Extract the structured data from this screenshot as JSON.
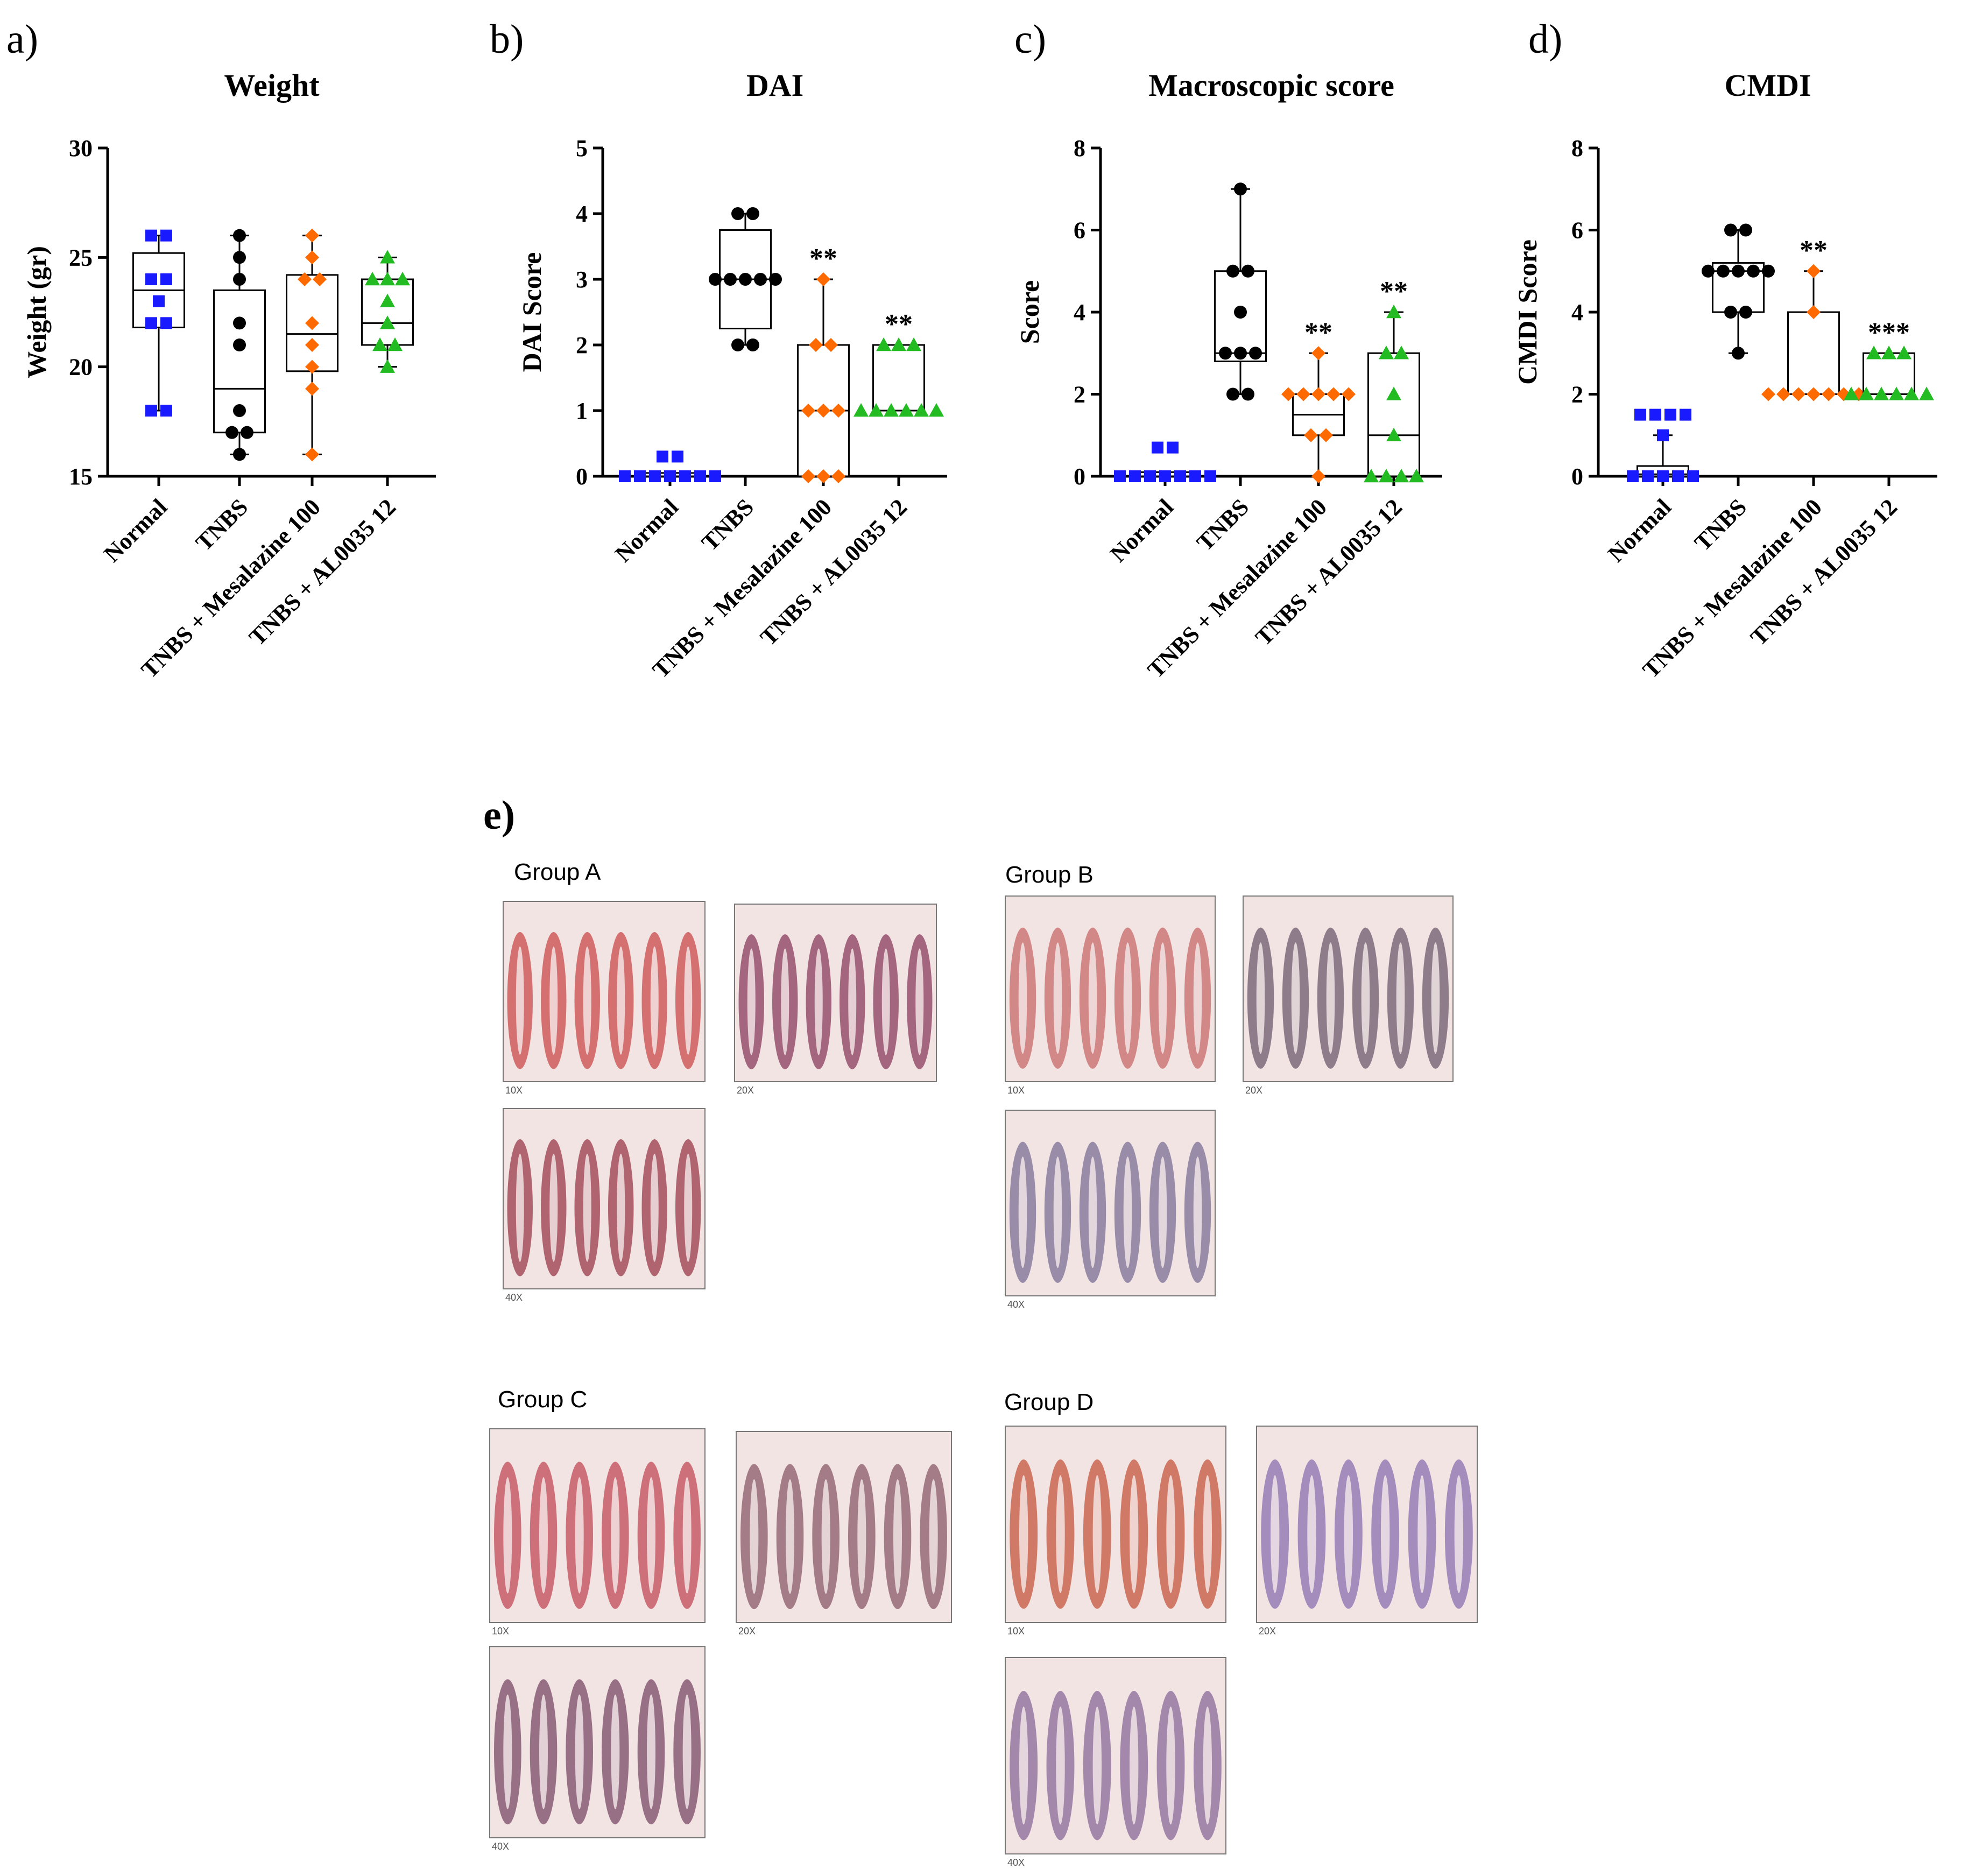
{
  "chart_data": [
    {
      "panel": "a)",
      "type": "box",
      "title": "Weight",
      "ylabel": "Weight (gr)",
      "ylim": [
        15,
        30
      ],
      "yticks": [
        15,
        20,
        25,
        30
      ],
      "categories": [
        "Normal",
        "TNBS",
        "TNBS + Mesalazine 100",
        "TNBS + AL0035 12"
      ],
      "colors": [
        "#1a1aff",
        "#000000",
        "#ff6a00",
        "#22bb22"
      ],
      "markers": [
        "square",
        "circle",
        "diamond",
        "triangle"
      ],
      "series": [
        {
          "name": "Normal",
          "points": [
            18,
            18,
            22,
            22,
            23,
            24,
            24,
            26,
            26
          ],
          "box": {
            "min": 18,
            "q1": 21.8,
            "median": 23.5,
            "q3": 25.2,
            "max": 26
          },
          "sig": ""
        },
        {
          "name": "TNBS",
          "points": [
            16,
            17,
            17,
            18,
            21,
            22,
            24,
            25,
            26
          ],
          "box": {
            "min": 16,
            "q1": 17,
            "median": 19,
            "q3": 23.5,
            "max": 26
          },
          "sig": ""
        },
        {
          "name": "TNBS + Mesalazine 100",
          "points": [
            16,
            19,
            20,
            21,
            22,
            24,
            24,
            25,
            26
          ],
          "box": {
            "min": 16,
            "q1": 19.8,
            "median": 21.5,
            "q3": 24.2,
            "max": 26
          },
          "sig": ""
        },
        {
          "name": "TNBS + AL0035 12",
          "points": [
            20,
            21,
            21,
            22,
            23,
            24,
            24,
            24,
            25
          ],
          "box": {
            "min": 20,
            "q1": 21,
            "median": 22,
            "q3": 24,
            "max": 25
          },
          "sig": ""
        }
      ]
    },
    {
      "panel": "b)",
      "type": "box",
      "title": "DAI",
      "ylabel": "DAI Score",
      "ylim": [
        0,
        5
      ],
      "yticks": [
        0,
        1,
        2,
        3,
        4,
        5
      ],
      "categories": [
        "Normal",
        "TNBS",
        "TNBS + Mesalazine 100",
        "TNBS + AL0035 12"
      ],
      "colors": [
        "#1a1aff",
        "#000000",
        "#ff6a00",
        "#22bb22"
      ],
      "markers": [
        "square",
        "circle",
        "diamond",
        "triangle"
      ],
      "series": [
        {
          "name": "Normal",
          "points": [
            0,
            0,
            0,
            0,
            0,
            0,
            0,
            0.3,
            0.3
          ],
          "box": {
            "min": 0,
            "q1": 0,
            "median": 0,
            "q3": 0.05,
            "max": 0.05
          },
          "sig": ""
        },
        {
          "name": "TNBS",
          "points": [
            2,
            2,
            3,
            3,
            3,
            3,
            3,
            4,
            4
          ],
          "box": {
            "min": 2,
            "q1": 2.25,
            "median": 3,
            "q3": 3.75,
            "max": 4
          },
          "sig": ""
        },
        {
          "name": "TNBS + Mesalazine 100",
          "points": [
            0,
            0,
            0,
            1,
            1,
            1,
            2,
            2,
            3
          ],
          "box": {
            "min": 0,
            "q1": 0,
            "median": 1,
            "q3": 2,
            "max": 3
          },
          "sig": "**"
        },
        {
          "name": "TNBS + AL0035 12",
          "points": [
            1,
            1,
            1,
            1,
            1,
            1,
            2,
            2,
            2
          ],
          "box": {
            "min": 1,
            "q1": 1,
            "median": 1,
            "q3": 2,
            "max": 2
          },
          "sig": "**"
        }
      ]
    },
    {
      "panel": "c)",
      "type": "box",
      "title": "Macroscopic score",
      "ylabel": "Score",
      "ylim": [
        0,
        8
      ],
      "yticks": [
        0,
        2,
        4,
        6,
        8
      ],
      "categories": [
        "Normal",
        "TNBS",
        "TNBS + Mesalazine 100",
        "TNBS + AL0035 12"
      ],
      "colors": [
        "#1a1aff",
        "#000000",
        "#ff6a00",
        "#22bb22"
      ],
      "markers": [
        "square",
        "circle",
        "diamond",
        "triangle"
      ],
      "series": [
        {
          "name": "Normal",
          "points": [
            0,
            0,
            0,
            0,
            0,
            0,
            0,
            0.7,
            0.7
          ],
          "box": {
            "min": 0,
            "q1": 0,
            "median": 0,
            "q3": 0.1,
            "max": 0.1
          },
          "sig": ""
        },
        {
          "name": "TNBS",
          "points": [
            2,
            2,
            3,
            3,
            3,
            4,
            5,
            5,
            7
          ],
          "box": {
            "min": 2,
            "q1": 2.8,
            "median": 3,
            "q3": 5,
            "max": 7
          },
          "sig": ""
        },
        {
          "name": "TNBS + Mesalazine 100",
          "points": [
            0,
            1,
            1,
            2,
            2,
            2,
            2,
            2,
            3
          ],
          "box": {
            "min": 0,
            "q1": 1,
            "median": 1.5,
            "q3": 2,
            "max": 3
          },
          "sig": "**"
        },
        {
          "name": "TNBS + AL0035 12",
          "points": [
            0,
            0,
            0,
            0,
            1,
            2,
            3,
            3,
            4
          ],
          "box": {
            "min": 0,
            "q1": 0,
            "median": 1,
            "q3": 3,
            "max": 4
          },
          "sig": "**"
        }
      ]
    },
    {
      "panel": "d)",
      "type": "box",
      "title": "CMDI",
      "ylabel": "CMDI Score",
      "ylim": [
        0,
        8
      ],
      "yticks": [
        0,
        2,
        4,
        6,
        8
      ],
      "categories": [
        "Normal",
        "TNBS",
        "TNBS + Mesalazine 100",
        "TNBS + AL0035 12"
      ],
      "colors": [
        "#1a1aff",
        "#000000",
        "#ff6a00",
        "#22bb22"
      ],
      "markers": [
        "square",
        "circle",
        "diamond",
        "triangle"
      ],
      "series": [
        {
          "name": "Normal",
          "points": [
            0,
            0,
            0,
            0,
            0,
            1,
            1.5,
            1.5,
            1.5,
            1.5
          ],
          "box": {
            "min": 0,
            "q1": 0,
            "median": 0.05,
            "q3": 0.25,
            "max": 1
          },
          "sig": ""
        },
        {
          "name": "TNBS",
          "points": [
            3,
            4,
            4,
            5,
            5,
            5,
            5,
            5,
            6,
            6
          ],
          "box": {
            "min": 3,
            "q1": 4,
            "median": 5,
            "q3": 5.2,
            "max": 6
          },
          "sig": ""
        },
        {
          "name": "TNBS + Mesalazine 100",
          "points": [
            2,
            2,
            2,
            2,
            2,
            2,
            2,
            4,
            5
          ],
          "box": {
            "min": 2,
            "q1": 2,
            "median": 2,
            "q3": 4,
            "max": 5
          },
          "sig": "**"
        },
        {
          "name": "TNBS + AL0035 12",
          "points": [
            2,
            2,
            2,
            2,
            2,
            2,
            3,
            3,
            3
          ],
          "box": {
            "min": 2,
            "q1": 2,
            "median": 2,
            "q3": 3,
            "max": 3
          },
          "sig": "***"
        }
      ]
    }
  ],
  "histology": {
    "panel": "e)",
    "groups": [
      {
        "label": "Group A",
        "magnifications": [
          "10X",
          "20X",
          "40X"
        ],
        "tints": [
          "#c94a4a",
          "#8a3b5c",
          "#9a3a48"
        ]
      },
      {
        "label": "Group B",
        "magnifications": [
          "10X",
          "20X",
          "40X"
        ],
        "tints": [
          "#c8696a",
          "#6e5a6e",
          "#7b6f94"
        ]
      },
      {
        "label": "Group C",
        "magnifications": [
          "10X",
          "20X",
          "40X"
        ],
        "tints": [
          "#c14a55",
          "#8a5a6a",
          "#7a4a66"
        ]
      },
      {
        "label": "Group D",
        "magnifications": [
          "10X",
          "20X",
          "40X"
        ],
        "tints": [
          "#c4553c",
          "#8a70b0",
          "#8a6a9a"
        ]
      }
    ]
  }
}
